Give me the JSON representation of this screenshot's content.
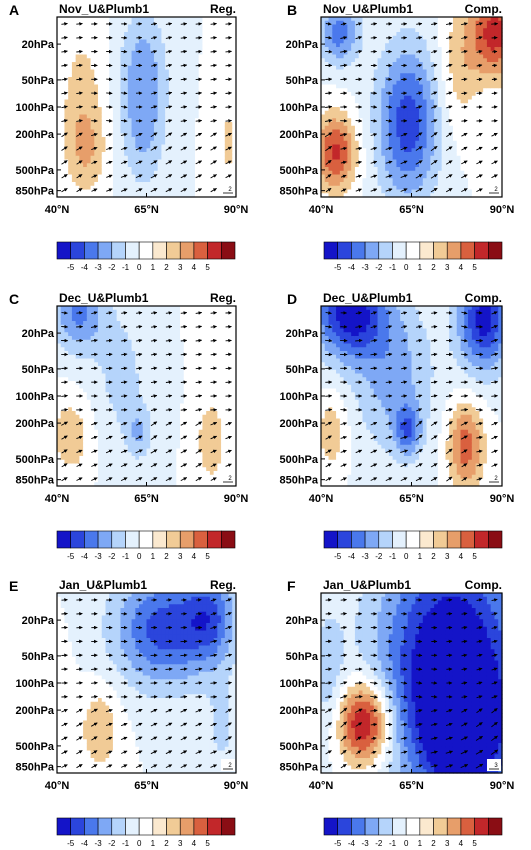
{
  "colorbar": {
    "levels": [
      "-5",
      "-4",
      "-3",
      "-2",
      "-1",
      "0",
      "1",
      "2",
      "3",
      "4",
      "5"
    ],
    "colors": [
      "#1414c8",
      "#2b45dc",
      "#4a78ec",
      "#7ea8f5",
      "#b5d4fb",
      "#e4f1fd",
      "#ffffff",
      "#fbe9cf",
      "#f1cb96",
      "#e79e6a",
      "#d9603f",
      "#c2272a",
      "#8a0d14"
    ]
  },
  "chart_data": [
    {
      "type": "heatmap",
      "panel": "A",
      "title": "Nov_U&Plumb1",
      "method": "Reg.",
      "x_ticks": [
        "40°N",
        "65°N",
        "90°N"
      ],
      "y_ticks": [
        "20hPa",
        "50hPa",
        "100hPa",
        "200hPa",
        "500hPa",
        "850hPa"
      ],
      "xlim": [
        40,
        90
      ],
      "pressure_range": [
        10,
        1000
      ],
      "reference_vector": "2",
      "anomalies": [
        {
          "lat": 47,
          "p": 60,
          "value": 1.2,
          "lat_spread": 5,
          "p_spread": 0.6
        },
        {
          "lat": 48,
          "p": 300,
          "value": 1.8,
          "lat_spread": 4,
          "p_spread": 0.35
        },
        {
          "lat": 64,
          "p": 120,
          "value": -2.6,
          "lat_spread": 4.5,
          "p_spread": 0.55
        },
        {
          "lat": 64,
          "p": 25,
          "value": -1.2,
          "lat_spread": 5,
          "p_spread": 0.4
        },
        {
          "lat": 88,
          "p": 250,
          "value": 1.1,
          "lat_spread": 3,
          "p_spread": 0.6
        }
      ]
    },
    {
      "type": "heatmap",
      "panel": "B",
      "title": "Nov_U&Plumb1",
      "method": "Comp.",
      "x_ticks": [
        "40°N",
        "65°N",
        "90°N"
      ],
      "y_ticks": [
        "20hPa",
        "50hPa",
        "100hPa",
        "200hPa",
        "500hPa",
        "850hPa"
      ],
      "xlim": [
        40,
        90
      ],
      "pressure_range": [
        10,
        1000
      ],
      "reference_vector": "2",
      "anomalies": [
        {
          "lat": 45,
          "p": 15,
          "value": -3.5,
          "lat_spread": 4,
          "p_spread": 0.25
        },
        {
          "lat": 44,
          "p": 320,
          "value": 4.2,
          "lat_spread": 4,
          "p_spread": 0.3
        },
        {
          "lat": 64,
          "p": 150,
          "value": -4.6,
          "lat_spread": 6,
          "p_spread": 0.6
        },
        {
          "lat": 88,
          "p": 15,
          "value": 4.5,
          "lat_spread": 5,
          "p_spread": 0.35
        },
        {
          "lat": 78,
          "p": 40,
          "value": 1.5,
          "lat_spread": 4,
          "p_spread": 0.5
        }
      ]
    },
    {
      "type": "heatmap",
      "panel": "C",
      "title": "Dec_U&Plumb1",
      "method": "Reg.",
      "x_ticks": [
        "40°N",
        "65°N",
        "90°N"
      ],
      "y_ticks": [
        "20hPa",
        "50hPa",
        "100hPa",
        "200hPa",
        "500hPa",
        "850hPa"
      ],
      "xlim": [
        40,
        90
      ],
      "pressure_range": [
        10,
        1000
      ],
      "reference_vector": "2",
      "anomalies": [
        {
          "lat": 46,
          "p": 12,
          "value": -3.2,
          "lat_spread": 5,
          "p_spread": 0.3
        },
        {
          "lat": 58,
          "p": 60,
          "value": -1.3,
          "lat_spread": 6,
          "p_spread": 0.6
        },
        {
          "lat": 44,
          "p": 280,
          "value": 1.8,
          "lat_spread": 4,
          "p_spread": 0.3
        },
        {
          "lat": 63,
          "p": 260,
          "value": -1.8,
          "lat_spread": 2.5,
          "p_spread": 0.2
        },
        {
          "lat": 83,
          "p": 320,
          "value": 1.7,
          "lat_spread": 3,
          "p_spread": 0.35
        },
        {
          "lat": 85,
          "p": 12,
          "value": 0.8,
          "lat_spread": 4,
          "p_spread": 0.3
        }
      ]
    },
    {
      "type": "heatmap",
      "panel": "D",
      "title": "Dec_U&Plumb1",
      "method": "Comp.",
      "x_ticks": [
        "40°N",
        "65°N",
        "90°N"
      ],
      "y_ticks": [
        "20hPa",
        "50hPa",
        "100hPa",
        "200hPa",
        "500hPa",
        "850hPa"
      ],
      "xlim": [
        40,
        90
      ],
      "pressure_range": [
        10,
        1000
      ],
      "reference_vector": "2",
      "anomalies": [
        {
          "lat": 48,
          "p": 12,
          "value": -5.5,
          "lat_spread": 7,
          "p_spread": 0.35
        },
        {
          "lat": 85,
          "p": 14,
          "value": -5.5,
          "lat_spread": 5,
          "p_spread": 0.4
        },
        {
          "lat": 60,
          "p": 60,
          "value": -2.4,
          "lat_spread": 8,
          "p_spread": 0.6
        },
        {
          "lat": 64,
          "p": 240,
          "value": -3.2,
          "lat_spread": 2.5,
          "p_spread": 0.2
        },
        {
          "lat": 43,
          "p": 250,
          "value": 1.8,
          "lat_spread": 3,
          "p_spread": 0.3
        },
        {
          "lat": 80,
          "p": 360,
          "value": 3.6,
          "lat_spread": 3.5,
          "p_spread": 0.35
        }
      ]
    },
    {
      "type": "heatmap",
      "panel": "E",
      "title": "Jan_U&Plumb1",
      "method": "Reg.",
      "x_ticks": [
        "40°N",
        "65°N",
        "90°N"
      ],
      "y_ticks": [
        "20hPa",
        "50hPa",
        "100hPa",
        "200hPa",
        "500hPa",
        "850hPa"
      ],
      "xlim": [
        40,
        90
      ],
      "pressure_range": [
        10,
        1000
      ],
      "reference_vector": "2",
      "anomalies": [
        {
          "lat": 70,
          "p": 25,
          "value": -4.5,
          "lat_spread": 10,
          "p_spread": 0.45
        },
        {
          "lat": 83,
          "p": 18,
          "value": -3.0,
          "lat_spread": 5,
          "p_spread": 0.35
        },
        {
          "lat": 52,
          "p": 320,
          "value": 1.8,
          "lat_spread": 4,
          "p_spread": 0.35
        },
        {
          "lat": 86,
          "p": 330,
          "value": -1.2,
          "lat_spread": 3,
          "p_spread": 0.4
        },
        {
          "lat": 40,
          "p": 180,
          "value": 0.8,
          "lat_spread": 3,
          "p_spread": 0.5
        }
      ]
    },
    {
      "type": "heatmap",
      "panel": "F",
      "title": "Jan_U&Plumb1",
      "method": "Comp.",
      "x_ticks": [
        "40°N",
        "65°N",
        "90°N"
      ],
      "y_ticks": [
        "20hPa",
        "50hPa",
        "100hPa",
        "200hPa",
        "500hPa",
        "850hPa"
      ],
      "xlim": [
        40,
        90
      ],
      "pressure_range": [
        10,
        1000
      ],
      "reference_vector": "3",
      "anomalies": [
        {
          "lat": 76,
          "p": 60,
          "value": -6.5,
          "lat_spread": 14,
          "p_spread": 1.0
        },
        {
          "lat": 80,
          "p": 400,
          "value": -4.5,
          "lat_spread": 8,
          "p_spread": 0.5
        },
        {
          "lat": 52,
          "p": 280,
          "value": 6.0,
          "lat_spread": 5,
          "p_spread": 0.32
        },
        {
          "lat": 42,
          "p": 80,
          "value": -1.5,
          "lat_spread": 3,
          "p_spread": 0.5
        }
      ]
    }
  ]
}
